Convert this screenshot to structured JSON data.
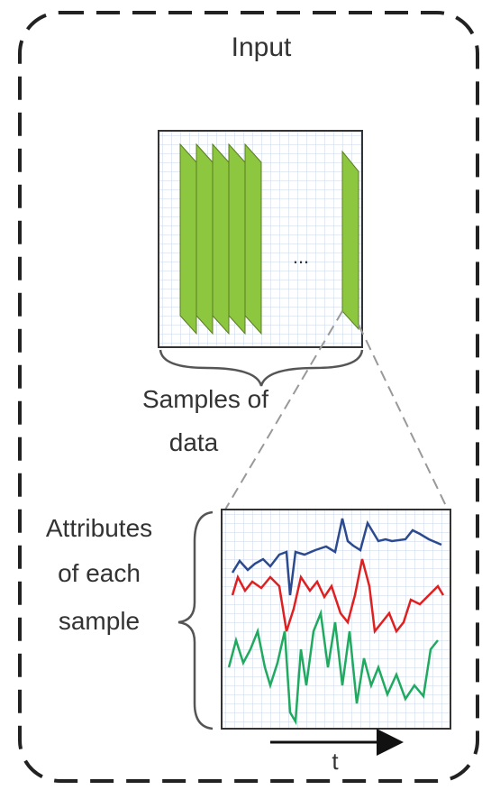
{
  "title": "Input",
  "samples_label": [
    "Samples of",
    "data"
  ],
  "ellipsis": "...",
  "attributes_label": [
    "Attributes",
    "of each",
    "sample"
  ],
  "time_axis": "t"
}
